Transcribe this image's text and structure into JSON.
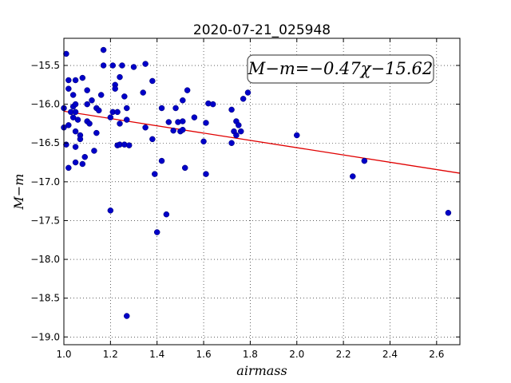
{
  "chart_data": {
    "type": "scatter",
    "title": "2020-07-21_025948",
    "xlabel": "airmass",
    "ylabel": "M−m",
    "xlim": [
      1.0,
      2.7
    ],
    "ylim": [
      -19.1,
      -15.15
    ],
    "xticks": [
      "1.0",
      "1.2",
      "1.4",
      "1.6",
      "1.8",
      "2.0",
      "2.2",
      "2.4",
      "2.6"
    ],
    "xtick_values": [
      1.0,
      1.2,
      1.4,
      1.6,
      1.8,
      2.0,
      2.2,
      2.4,
      2.6
    ],
    "yticks": [
      "−15.5",
      "−16.0",
      "−16.5",
      "−17.0",
      "−17.5",
      "−18.0",
      "−18.5",
      "−19.0"
    ],
    "ytick_values": [
      -15.5,
      -16.0,
      -16.5,
      -17.0,
      -17.5,
      -18.0,
      -18.5,
      -19.0
    ],
    "grid": true,
    "annotation": "M−m=−0.47χ−15.62",
    "fit": {
      "slope": -0.47,
      "intercept": -15.62,
      "color": "#e00000"
    },
    "point_color": "#0000c8",
    "points": [
      [
        1.0,
        -16.05
      ],
      [
        1.0,
        -16.3
      ],
      [
        1.01,
        -15.35
      ],
      [
        1.01,
        -16.52
      ],
      [
        1.02,
        -16.27
      ],
      [
        1.02,
        -15.69
      ],
      [
        1.02,
        -15.8
      ],
      [
        1.02,
        -16.82
      ],
      [
        1.03,
        -16.1
      ],
      [
        1.04,
        -16.17
      ],
      [
        1.04,
        -15.88
      ],
      [
        1.04,
        -16.03
      ],
      [
        1.05,
        -15.69
      ],
      [
        1.05,
        -16.0
      ],
      [
        1.05,
        -16.1
      ],
      [
        1.05,
        -16.35
      ],
      [
        1.05,
        -16.75
      ],
      [
        1.05,
        -16.55
      ],
      [
        1.06,
        -16.2
      ],
      [
        1.07,
        -16.4
      ],
      [
        1.07,
        -16.45
      ],
      [
        1.08,
        -15.66
      ],
      [
        1.08,
        -16.77
      ],
      [
        1.09,
        -16.68
      ],
      [
        1.1,
        -15.82
      ],
      [
        1.1,
        -16.0
      ],
      [
        1.1,
        -16.22
      ],
      [
        1.11,
        -16.25
      ],
      [
        1.12,
        -15.95
      ],
      [
        1.13,
        -16.6
      ],
      [
        1.14,
        -16.37
      ],
      [
        1.14,
        -16.05
      ],
      [
        1.15,
        -16.08
      ],
      [
        1.16,
        -15.88
      ],
      [
        1.17,
        -15.3
      ],
      [
        1.17,
        -15.5
      ],
      [
        1.2,
        -17.37
      ],
      [
        1.2,
        -16.17
      ],
      [
        1.21,
        -16.1
      ],
      [
        1.21,
        -15.5
      ],
      [
        1.22,
        -15.75
      ],
      [
        1.22,
        -15.8
      ],
      [
        1.23,
        -16.1
      ],
      [
        1.23,
        -16.53
      ],
      [
        1.24,
        -16.52
      ],
      [
        1.24,
        -16.25
      ],
      [
        1.24,
        -15.65
      ],
      [
        1.25,
        -15.5
      ],
      [
        1.26,
        -15.9
      ],
      [
        1.26,
        -16.52
      ],
      [
        1.27,
        -16.05
      ],
      [
        1.27,
        -16.2
      ],
      [
        1.28,
        -16.53
      ],
      [
        1.27,
        -18.73
      ],
      [
        1.3,
        -15.52
      ],
      [
        1.34,
        -15.85
      ],
      [
        1.35,
        -15.48
      ],
      [
        1.35,
        -16.3
      ],
      [
        1.38,
        -15.7
      ],
      [
        1.38,
        -16.45
      ],
      [
        1.39,
        -16.9
      ],
      [
        1.4,
        -17.65
      ],
      [
        1.42,
        -16.05
      ],
      [
        1.42,
        -16.73
      ],
      [
        1.44,
        -17.42
      ],
      [
        1.45,
        -16.23
      ],
      [
        1.47,
        -16.34
      ],
      [
        1.48,
        -16.05
      ],
      [
        1.49,
        -16.23
      ],
      [
        1.5,
        -16.35
      ],
      [
        1.51,
        -15.95
      ],
      [
        1.51,
        -16.22
      ],
      [
        1.51,
        -16.33
      ],
      [
        1.52,
        -16.82
      ],
      [
        1.53,
        -15.82
      ],
      [
        1.56,
        -16.17
      ],
      [
        1.6,
        -16.48
      ],
      [
        1.61,
        -16.9
      ],
      [
        1.61,
        -16.24
      ],
      [
        1.62,
        -15.99
      ],
      [
        1.64,
        -16.0
      ],
      [
        1.72,
        -16.5
      ],
      [
        1.72,
        -16.07
      ],
      [
        1.73,
        -16.35
      ],
      [
        1.74,
        -16.4
      ],
      [
        1.74,
        -16.22
      ],
      [
        1.75,
        -16.27
      ],
      [
        1.76,
        -16.35
      ],
      [
        1.77,
        -15.93
      ],
      [
        1.79,
        -15.85
      ],
      [
        2.0,
        -16.4
      ],
      [
        2.24,
        -16.93
      ],
      [
        2.29,
        -16.73
      ],
      [
        2.65,
        -17.4
      ]
    ]
  }
}
